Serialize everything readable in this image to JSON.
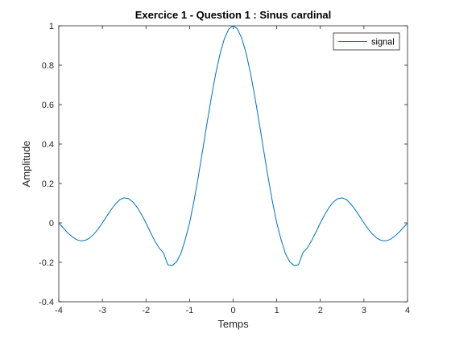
{
  "chart_data": {
    "type": "line",
    "title": "Exercice 1 - Question 1 : Sinus cardinal",
    "xlabel": "Temps",
    "ylabel": "Amplitude",
    "xlim": [
      -4,
      4
    ],
    "ylim": [
      -0.4,
      1
    ],
    "xticks": [
      -4,
      -3,
      -2,
      -1,
      0,
      1,
      2,
      3,
      4
    ],
    "yticks": [
      -0.4,
      -0.2,
      0,
      0.2,
      0.4,
      0.6,
      0.8,
      1
    ],
    "grid": false,
    "legend_position": "top-right",
    "series": [
      {
        "name": "signal",
        "color": "#0072BD",
        "x": [
          -4.0,
          -3.9,
          -3.8,
          -3.7,
          -3.6,
          -3.5,
          -3.4,
          -3.3,
          -3.2,
          -3.1,
          -3.0,
          -2.9,
          -2.8,
          -2.7,
          -2.6,
          -2.5,
          -2.4,
          -2.3,
          -2.2,
          -2.1,
          -2.0,
          -1.9,
          -1.8,
          -1.7,
          -1.6,
          -1.5,
          -1.4,
          -1.3,
          -1.2,
          -1.1,
          -1.0,
          -0.9,
          -0.8,
          -0.7,
          -0.6,
          -0.5,
          -0.4,
          -0.3,
          -0.2,
          -0.1,
          0.0,
          0.1,
          0.2,
          0.3,
          0.4,
          0.5,
          0.6,
          0.7,
          0.8,
          0.9,
          1.0,
          1.1,
          1.2,
          1.3,
          1.4,
          1.5,
          1.6,
          1.7,
          1.8,
          1.9,
          2.0,
          2.1,
          2.2,
          2.3,
          2.4,
          2.5,
          2.6,
          2.7,
          2.8,
          2.9,
          3.0,
          3.1,
          3.2,
          3.3,
          3.4,
          3.5,
          3.6,
          3.7,
          3.8,
          3.9,
          4.0
        ],
        "y": [
          0.0,
          -0.025,
          -0.049,
          -0.069,
          -0.084,
          -0.091,
          -0.089,
          -0.078,
          -0.058,
          -0.032,
          0.0,
          0.034,
          0.067,
          0.096,
          0.118,
          0.127,
          0.123,
          0.106,
          0.078,
          0.042,
          0.0,
          -0.046,
          -0.09,
          -0.127,
          -0.151,
          -0.212,
          -0.216,
          -0.198,
          -0.156,
          -0.085,
          0.0,
          0.109,
          0.234,
          0.368,
          0.505,
          0.637,
          0.757,
          0.858,
          0.935,
          0.984,
          1.0,
          0.984,
          0.935,
          0.858,
          0.757,
          0.637,
          0.505,
          0.368,
          0.234,
          0.109,
          0.0,
          -0.085,
          -0.156,
          -0.198,
          -0.216,
          -0.212,
          -0.151,
          -0.127,
          -0.09,
          -0.046,
          0.0,
          0.042,
          0.078,
          0.106,
          0.123,
          0.127,
          0.118,
          0.096,
          0.067,
          0.034,
          0.0,
          -0.032,
          -0.058,
          -0.078,
          -0.089,
          -0.091,
          -0.084,
          -0.069,
          -0.049,
          -0.025,
          0.0
        ]
      }
    ]
  }
}
